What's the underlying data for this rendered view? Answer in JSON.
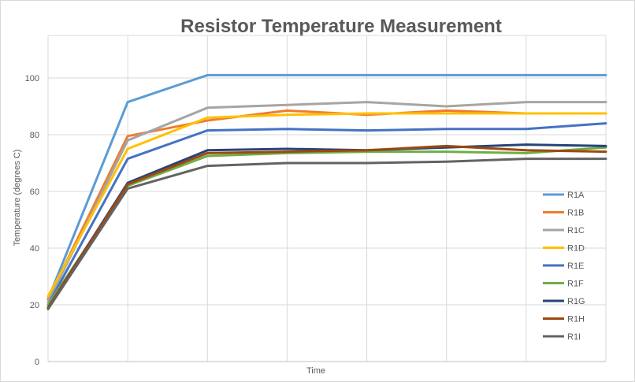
{
  "chart_data": {
    "type": "line",
    "title": "Resistor Temperature Measurement",
    "xlabel": "Time",
    "ylabel": "Temperature  (degrees C)",
    "x": [
      0,
      1,
      2,
      3,
      4,
      5,
      6,
      7
    ],
    "ylim": [
      0,
      115
    ],
    "yticks": [
      0,
      20,
      40,
      60,
      80,
      100
    ],
    "grid": true,
    "legend_position": "right",
    "series": [
      {
        "name": "R1A",
        "color": "#5b9bd5",
        "values": [
          22,
          91.5,
          101,
          101,
          101,
          101,
          101,
          101
        ]
      },
      {
        "name": "R1B",
        "color": "#ed7d31",
        "values": [
          22,
          79.5,
          85,
          88.5,
          87,
          88.5,
          87.5,
          87.5
        ]
      },
      {
        "name": "R1C",
        "color": "#a5a5a5",
        "values": [
          21,
          78,
          89.5,
          90.5,
          91.5,
          90,
          91.5,
          91.5
        ]
      },
      {
        "name": "R1D",
        "color": "#ffc000",
        "values": [
          23,
          75,
          86,
          87,
          87.5,
          87.5,
          87.5,
          87.5
        ]
      },
      {
        "name": "R1E",
        "color": "#4472c4",
        "values": [
          20,
          71.5,
          81.5,
          82,
          81.5,
          82,
          82,
          84
        ]
      },
      {
        "name": "R1F",
        "color": "#70ad47",
        "values": [
          20,
          62,
          72.5,
          73.5,
          74,
          74,
          73.5,
          75.5
        ]
      },
      {
        "name": "R1G",
        "color": "#264478",
        "values": [
          19,
          63,
          74.5,
          75,
          74.5,
          75.5,
          76.5,
          76
        ]
      },
      {
        "name": "R1H",
        "color": "#9e480e",
        "values": [
          19,
          62.5,
          73.5,
          74,
          74.5,
          76,
          74.5,
          74
        ]
      },
      {
        "name": "R1I",
        "color": "#636363",
        "values": [
          18.5,
          61,
          69,
          70,
          70,
          70.5,
          71.5,
          71.5
        ]
      }
    ]
  }
}
